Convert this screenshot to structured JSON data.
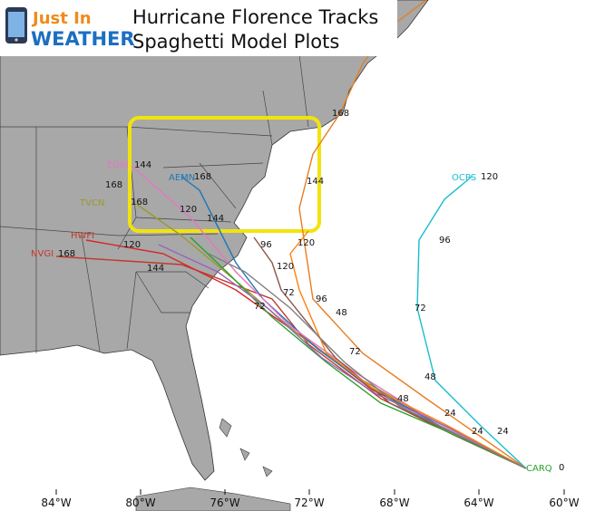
{
  "header": {
    "logo_top": "Just In",
    "logo_bottom": "WEATHER",
    "title_line1": "Hurricane Florence Tracks",
    "title_line2": "Spaghetti Model Plots"
  },
  "lon_labels": [
    "84°W",
    "80°W",
    "76°W",
    "72°W",
    "68°W",
    "64°W",
    "60°W"
  ],
  "model_labels": [
    "OCPS",
    "AEMN",
    "EGRI",
    "HWFI",
    "NVGI",
    "TVCN",
    "CARQ"
  ],
  "hour_labels": [
    0,
    24,
    24,
    24,
    48,
    48,
    48,
    72,
    72,
    72,
    72,
    96,
    96,
    96,
    120,
    120,
    120,
    120,
    120,
    144,
    144,
    144,
    144,
    168,
    168,
    168,
    168,
    168
  ]
}
